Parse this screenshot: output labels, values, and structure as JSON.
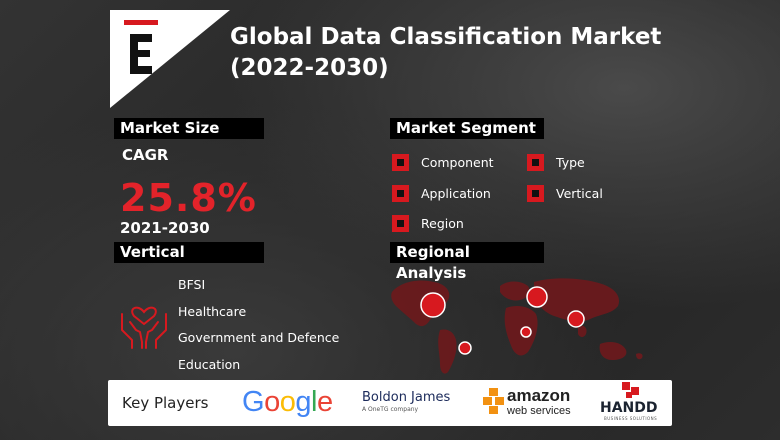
{
  "header": {
    "title_line1": "Global Data Classification Market",
    "title_line2": "(2022-2030)",
    "logo_icon": "brand-e-logo-icon"
  },
  "market_size": {
    "label": "Market Size",
    "cagr_label": "CAGR",
    "cagr_value": "25.8%",
    "period": "2021-2030"
  },
  "vertical": {
    "label": "Vertical",
    "icon": "hands-heart-icon",
    "items": [
      "BFSI",
      "Healthcare",
      "Government and Defence",
      "Education"
    ]
  },
  "market_segment": {
    "label": "Market Segment",
    "items": [
      "Component",
      "Type",
      "Application",
      "Vertical",
      "Region"
    ]
  },
  "regional": {
    "label": "Regional Analysis",
    "map_icon": "world-map-icon"
  },
  "key_players": {
    "label": "Key Players",
    "google": "Google",
    "boldon": "Boldon James",
    "boldon_sub": "A OneTG company",
    "amazon": "amazon",
    "amazon_sub": "web services",
    "handd": "HANDD",
    "handd_sub": "BUSINESS SOLUTIONS"
  },
  "colors": {
    "accent_red": "#d7191f",
    "cagr_red": "#e3232a",
    "label_bg": "#000000"
  }
}
